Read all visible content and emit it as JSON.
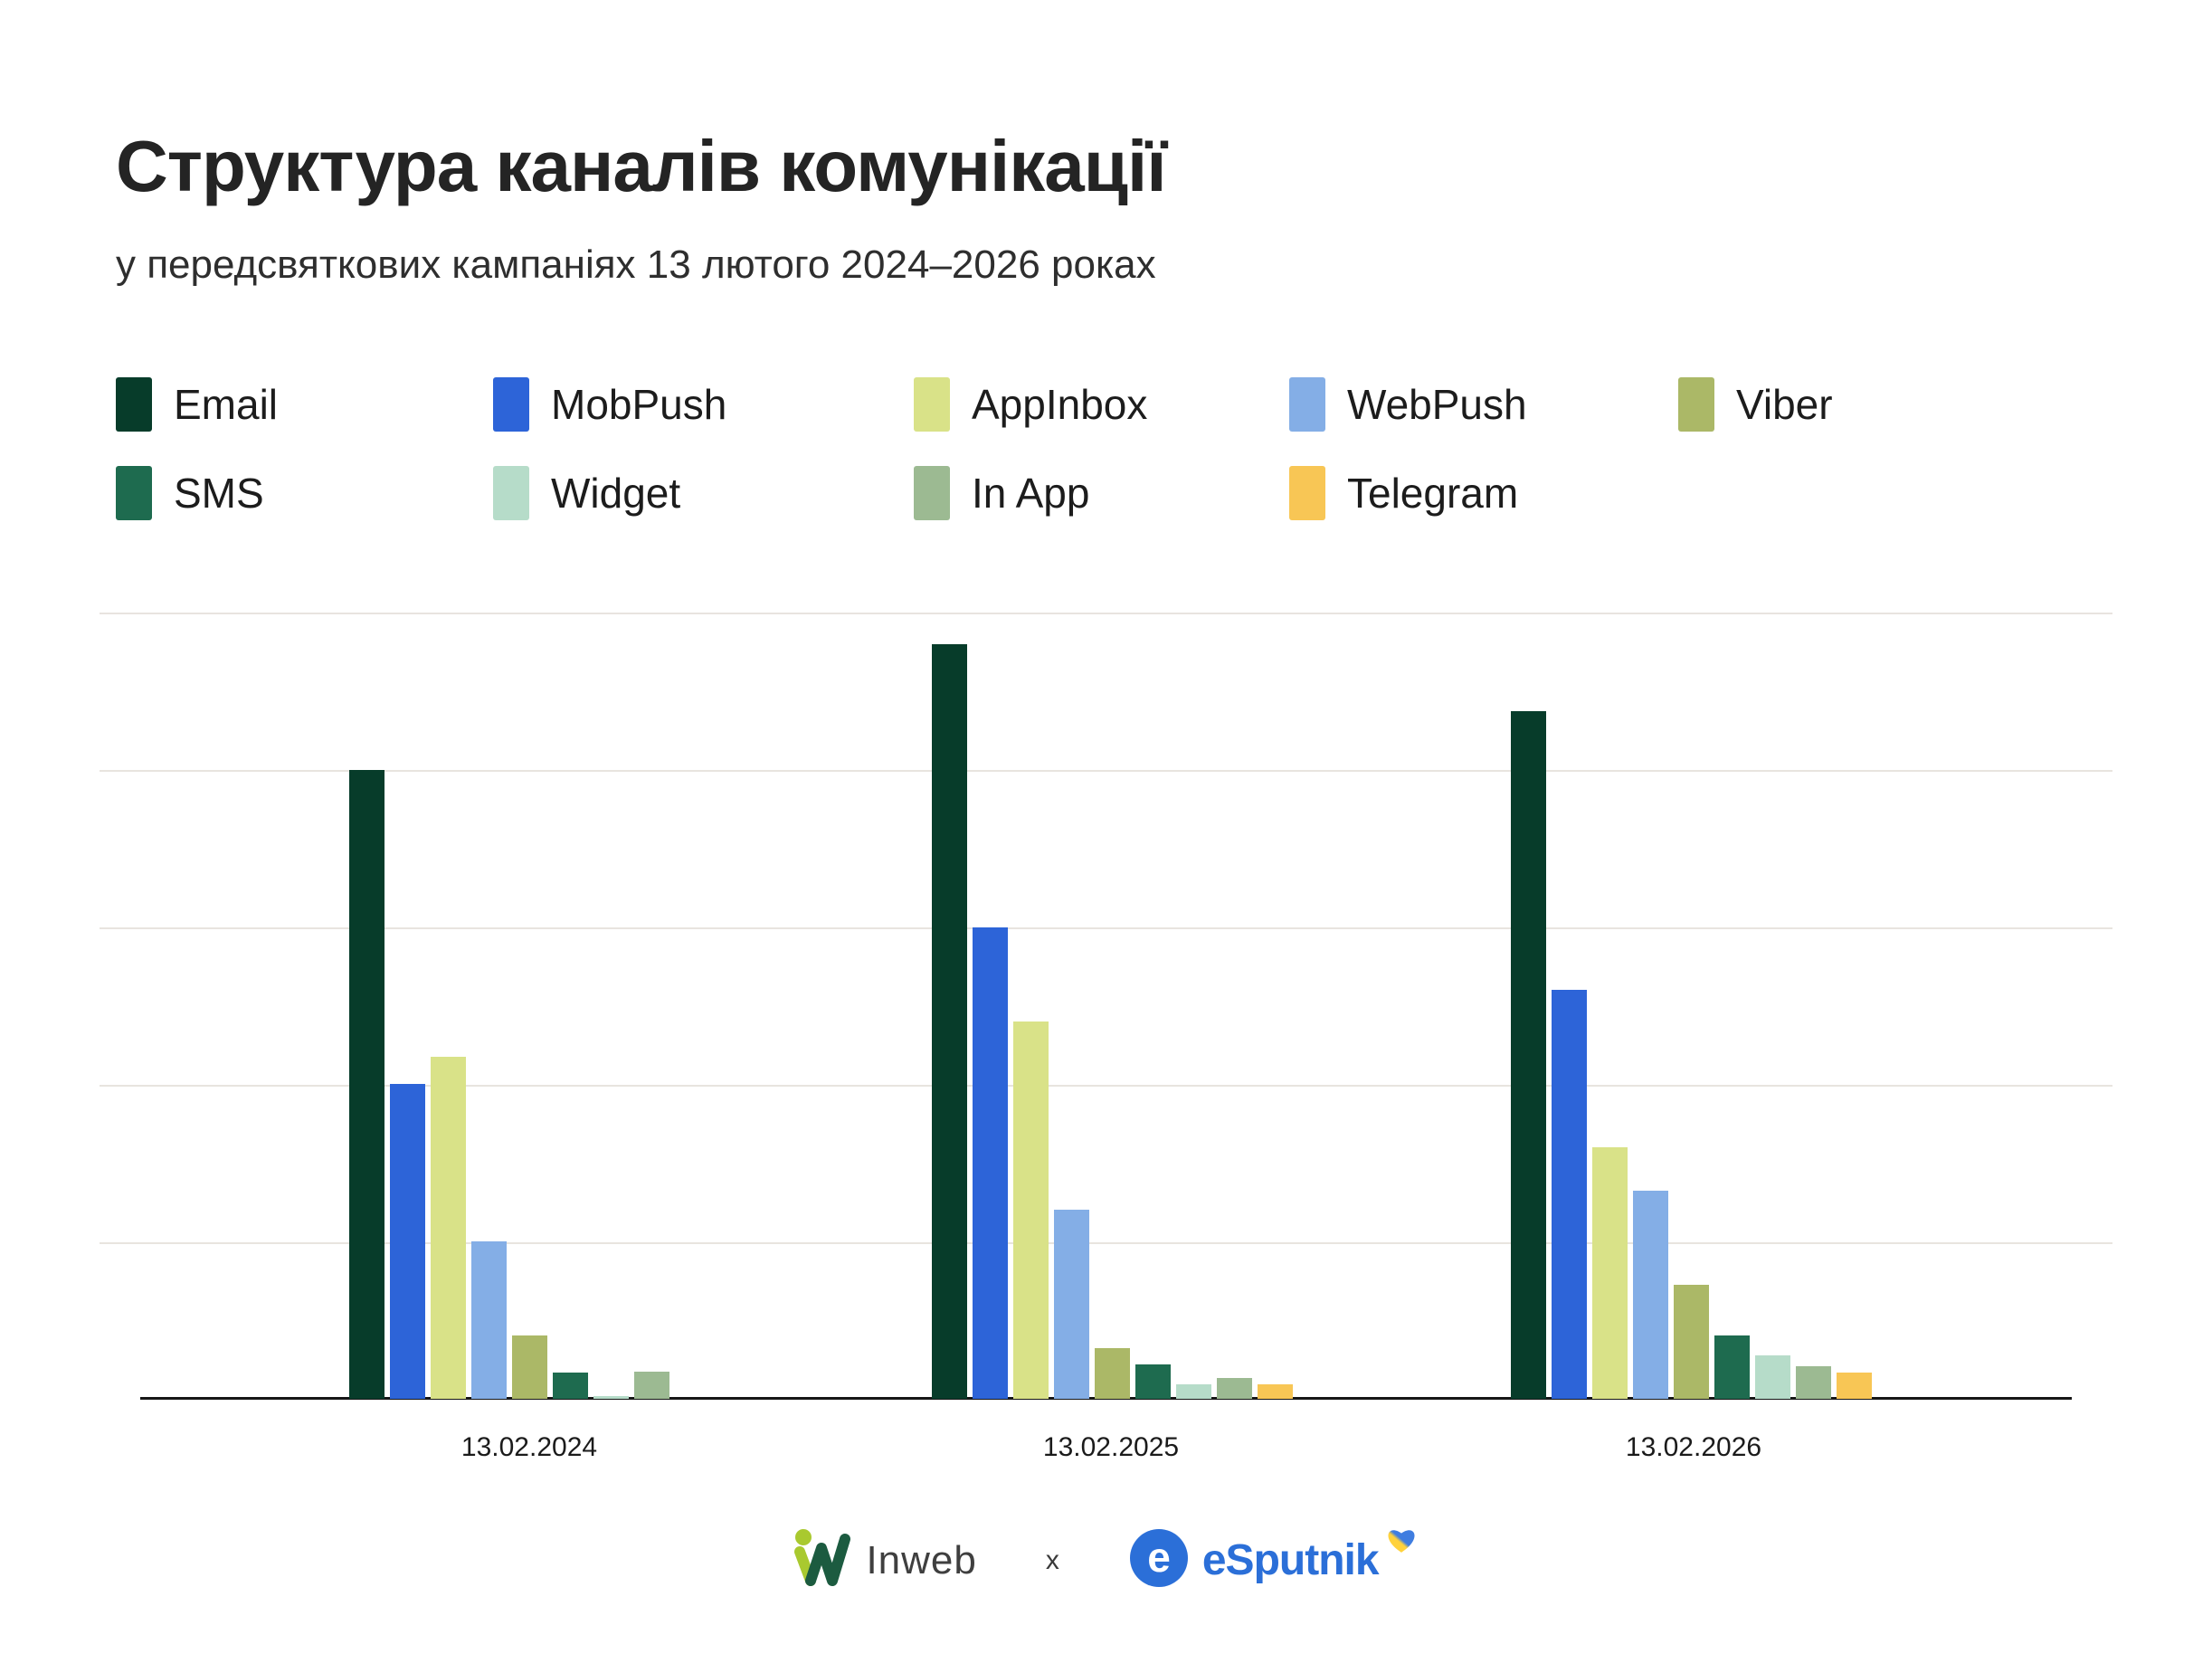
{
  "header": {
    "title": "Структура каналів комунікації",
    "subtitle": "у передсвяткових кампаніях 13 лютого 2024–2026 роках"
  },
  "chart_data": {
    "type": "bar",
    "categories": [
      "13.02.2024",
      "13.02.2025",
      "13.02.2026"
    ],
    "series": [
      {
        "name": "Email",
        "color": "#073c2a",
        "values": [
          80,
          96,
          87.5
        ]
      },
      {
        "name": "MobPush",
        "color": "#2d64d8",
        "values": [
          40,
          60,
          52
        ]
      },
      {
        "name": "AppInbox",
        "color": "#d9e288",
        "values": [
          43.5,
          48,
          32
        ]
      },
      {
        "name": "WebPush",
        "color": "#84aee6",
        "values": [
          20,
          24,
          26.5
        ]
      },
      {
        "name": "Viber",
        "color": "#abb867",
        "values": [
          8,
          6.5,
          14.5
        ]
      },
      {
        "name": "SMS",
        "color": "#1e6b4f",
        "values": [
          3.3,
          4.4,
          8
        ]
      },
      {
        "name": "Widget",
        "color": "#b6dcc9",
        "values": [
          0.3,
          1.8,
          5.5
        ]
      },
      {
        "name": "In App",
        "color": "#9cba92",
        "values": [
          3.5,
          2.6,
          4.2
        ]
      },
      {
        "name": "Telegram",
        "color": "#f8c655",
        "values": [
          0,
          1.8,
          3.3
        ]
      }
    ],
    "title": "Структура каналів комунікації",
    "xlabel": "",
    "ylabel": "",
    "ylim": [
      0,
      100
    ],
    "grid": true,
    "gridline_color": "#e8e4df",
    "legend_position": "top"
  },
  "footer": {
    "inweb_label": "Inweb",
    "separator": "x",
    "esputnik_label": "eSputnik"
  }
}
